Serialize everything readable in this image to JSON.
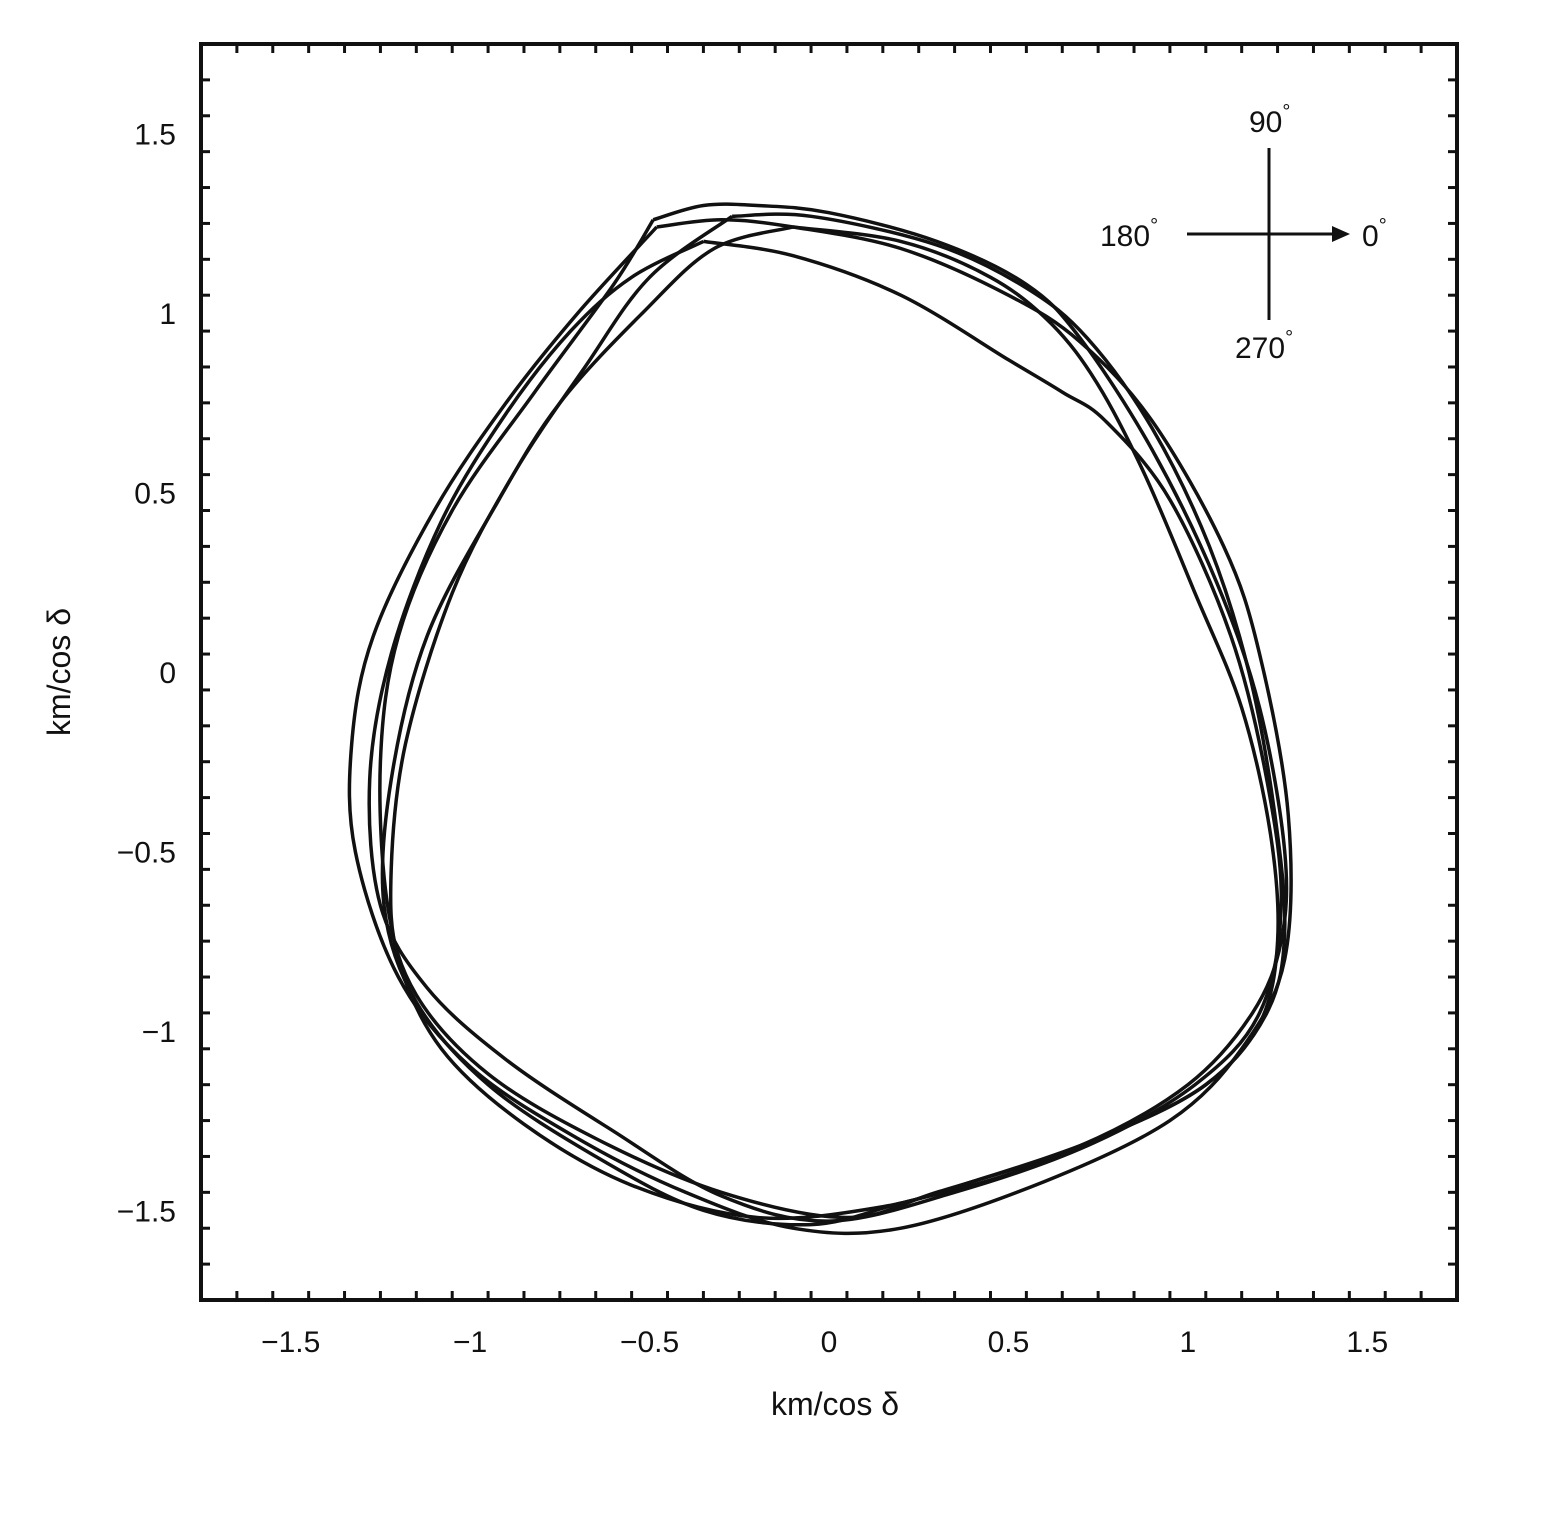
{
  "chart_data": {
    "type": "line",
    "title": "",
    "xlabel": "km/cos δ",
    "ylabel": "km/cos δ",
    "xlim": [
      -1.75,
      1.75
    ],
    "ylim": [
      -1.75,
      1.75
    ],
    "xticks": [
      -1.5,
      -1,
      -0.5,
      0,
      0.5,
      1,
      1.5
    ],
    "xtick_labels": [
      "−1.5",
      "−1",
      "−0.5",
      "0",
      "0.5",
      "1",
      "1.5"
    ],
    "yticks": [
      1.5,
      1,
      0.5,
      0,
      -0.5,
      -1,
      -1.5
    ],
    "ytick_labels": [
      "1.5",
      "1",
      "0.5",
      "0",
      "−0.5",
      "−1",
      "−1.5"
    ],
    "grid": false,
    "legend": "none",
    "line_color": "#111111",
    "compass": {
      "north": "90",
      "west": "180",
      "east": "0",
      "south": "270",
      "degree_symbol": "°"
    },
    "series": [
      {
        "x": [
          -0.49,
          -0.35,
          -0.2,
          0.0,
          0.3,
          0.55,
          0.7,
          0.9,
          1.08,
          1.2,
          1.27,
          1.26,
          1.18,
          1.0,
          0.7,
          0.3,
          0.05,
          -0.3,
          -0.65,
          -0.95,
          -1.15,
          -1.23,
          -1.25,
          -1.2,
          -1.05,
          -0.82,
          -0.6,
          -0.49
        ],
        "y": [
          1.26,
          1.3,
          1.3,
          1.28,
          1.2,
          1.08,
          0.93,
          0.62,
          0.25,
          -0.1,
          -0.5,
          -0.75,
          -0.95,
          -1.15,
          -1.32,
          -1.45,
          -1.52,
          -1.45,
          -1.3,
          -1.12,
          -0.9,
          -0.65,
          -0.25,
          0.1,
          0.45,
          0.78,
          1.08,
          1.26
        ]
      },
      {
        "x": [
          -0.27,
          -0.05,
          0.3,
          0.55,
          0.72,
          0.9,
          1.06,
          1.17,
          1.24,
          1.27,
          1.22,
          1.05,
          0.75,
          0.4,
          0.15,
          -0.2,
          -0.55,
          -0.85,
          -1.08,
          -1.2,
          -1.22,
          -1.18,
          -1.05,
          -0.88,
          -0.68,
          -0.5,
          -0.27
        ],
        "y": [
          1.27,
          1.27,
          1.19,
          1.07,
          0.93,
          0.68,
          0.35,
          0.0,
          -0.38,
          -0.72,
          -0.95,
          -1.15,
          -1.3,
          -1.42,
          -1.49,
          -1.52,
          -1.43,
          -1.26,
          -1.05,
          -0.8,
          -0.55,
          -0.2,
          0.22,
          0.55,
          0.85,
          1.1,
          1.27
        ]
      },
      {
        "x": [
          -0.1,
          0.2,
          0.45,
          0.62,
          0.75,
          0.88,
          1.02,
          1.15,
          1.23,
          1.25,
          1.2,
          1.05,
          0.8,
          0.5,
          0.2,
          -0.05,
          -0.35,
          -0.65,
          -0.95,
          -1.15,
          -1.24,
          -1.22,
          -1.12,
          -0.92,
          -0.75,
          -0.52,
          -0.32,
          -0.1
        ],
        "y": [
          1.24,
          1.2,
          1.1,
          0.97,
          0.8,
          0.55,
          0.22,
          -0.1,
          -0.45,
          -0.75,
          -0.98,
          -1.15,
          -1.28,
          -1.4,
          -1.48,
          -1.54,
          -1.5,
          -1.35,
          -1.15,
          -0.92,
          -0.65,
          -0.3,
          0.1,
          0.48,
          0.75,
          1.0,
          1.18,
          1.24
        ]
      },
      {
        "x": [
          -0.35,
          -0.1,
          0.2,
          0.5,
          0.65,
          0.77,
          0.95,
          1.12,
          1.22,
          1.26,
          1.2,
          1.02,
          0.72,
          0.35,
          0.0,
          -0.3,
          -0.6,
          -0.9,
          -1.12,
          -1.25,
          -1.28,
          -1.22,
          -1.08,
          -0.9,
          -0.72,
          -0.55,
          -0.35
        ],
        "y": [
          1.2,
          1.16,
          1.05,
          0.87,
          0.78,
          0.7,
          0.48,
          0.1,
          -0.3,
          -0.65,
          -0.95,
          -1.15,
          -1.32,
          -1.45,
          -1.53,
          -1.46,
          -1.28,
          -1.08,
          -0.88,
          -0.65,
          -0.3,
          0.05,
          0.42,
          0.72,
          0.95,
          1.1,
          1.2
        ]
      },
      {
        "x": [
          -0.48,
          -0.3,
          -0.1,
          0.2,
          0.5,
          0.7,
          0.9,
          1.1,
          1.2,
          1.28,
          1.27,
          1.15,
          0.95,
          0.6,
          0.2,
          -0.1,
          -0.4,
          -0.7,
          -1.0,
          -1.2,
          -1.32,
          -1.33,
          -1.27,
          -1.1,
          -0.9,
          -0.7,
          -0.48
        ],
        "y": [
          1.24,
          1.26,
          1.24,
          1.18,
          1.05,
          0.92,
          0.7,
          0.35,
          0.05,
          -0.4,
          -0.8,
          -1.05,
          -1.25,
          -1.42,
          -1.55,
          -1.55,
          -1.45,
          -1.3,
          -1.1,
          -0.85,
          -0.5,
          -0.2,
          0.1,
          0.45,
          0.75,
          1.0,
          1.24
        ]
      }
    ]
  }
}
